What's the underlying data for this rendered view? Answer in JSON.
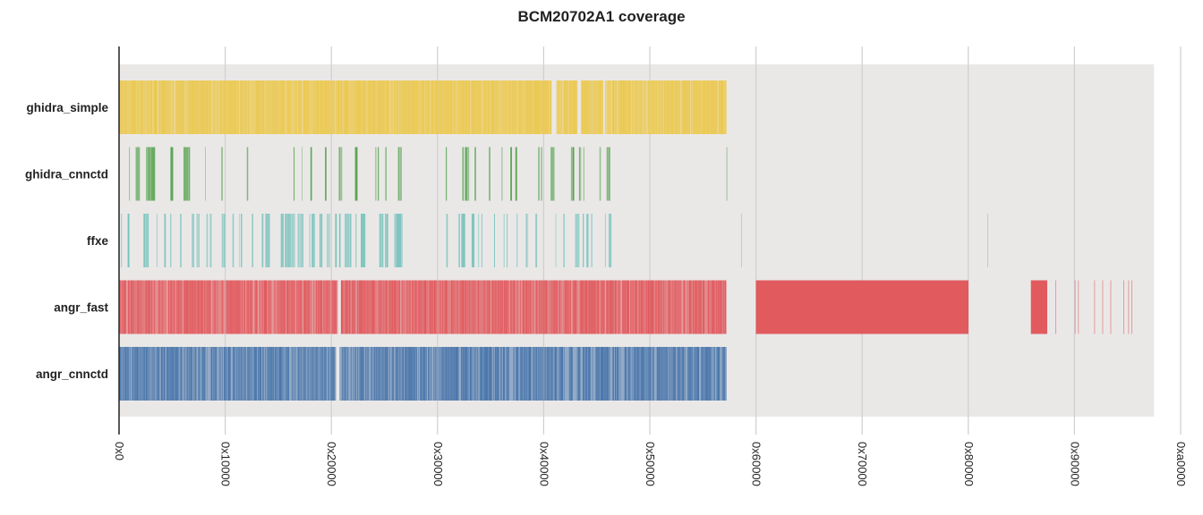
{
  "chart_data": {
    "type": "coverage",
    "title": "BCM20702A1 coverage",
    "x_range": [
      0,
      655360
    ],
    "x_ticks": [
      {
        "value": 0,
        "label": "0x0"
      },
      {
        "value": 65536,
        "label": "0x10000"
      },
      {
        "value": 131072,
        "label": "0x20000"
      },
      {
        "value": 196608,
        "label": "0x30000"
      },
      {
        "value": 262144,
        "label": "0x40000"
      },
      {
        "value": 327680,
        "label": "0x50000"
      },
      {
        "value": 393216,
        "label": "0x60000"
      },
      {
        "value": 458752,
        "label": "0x70000"
      },
      {
        "value": 524288,
        "label": "0x80000"
      },
      {
        "value": 589824,
        "label": "0x90000"
      },
      {
        "value": 655360,
        "label": "0xa0000"
      }
    ],
    "region_end": 638976,
    "grid": true,
    "series": [
      {
        "name": "ghidra_simple",
        "color": "#EBC84F",
        "density": 0.93,
        "pattern": "dense",
        "segments": [
          [
            0,
            267000
          ],
          [
            270000,
            283000
          ],
          [
            285000,
            299000
          ],
          [
            300000,
            375000
          ]
        ],
        "extra": []
      },
      {
        "name": "ghidra_cnnctd",
        "color": "#56A24F",
        "density": 0.26,
        "pattern": "sparse",
        "segments": [
          [
            0,
            82000
          ],
          [
            92000,
            130000
          ],
          [
            133000,
            175000
          ],
          [
            196000,
            238000
          ],
          [
            239000,
            270000
          ],
          [
            279000,
            293000
          ],
          [
            295000,
            304000
          ]
        ],
        "extra": [
          375000
        ]
      },
      {
        "name": "ffxe",
        "color": "#77C2BC",
        "density": 0.34,
        "pattern": "sparse",
        "segments": [
          [
            0,
            95000
          ],
          [
            99000,
            178000
          ],
          [
            202000,
            265000
          ],
          [
            267000,
            287000
          ],
          [
            287000,
            296000
          ],
          [
            298000,
            304000
          ]
        ],
        "extra": [
          384000,
          536000
        ]
      },
      {
        "name": "angr_fast",
        "color": "#E05A5E",
        "density": 0.85,
        "pattern": "dense",
        "segments": [
          [
            0,
            135000
          ],
          [
            137000,
            375000
          ],
          [
            393216,
            524288
          ],
          [
            563000,
            573000
          ]
        ],
        "extra": [
          578000,
          590000,
          592000,
          602000,
          607000,
          612000,
          620000,
          623000,
          625000
        ]
      },
      {
        "name": "angr_cnnctd",
        "color": "#4A76AB",
        "density": 0.75,
        "pattern": "dense",
        "segments": [
          [
            0,
            134000
          ],
          [
            136000,
            375000
          ]
        ],
        "extra": []
      }
    ]
  }
}
